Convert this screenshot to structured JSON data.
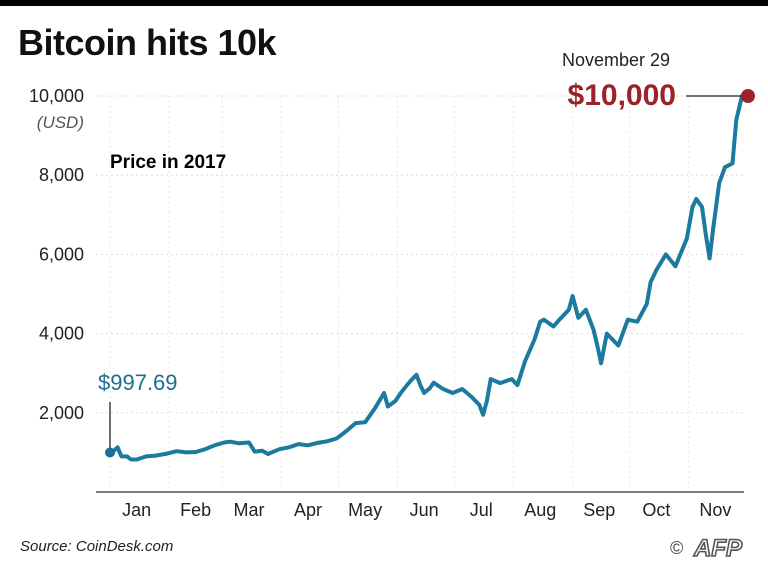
{
  "title": "Bitcoin hits 10k",
  "source": "Source: CoinDesk.com",
  "logo_text": "AFP",
  "copyright_symbol": "©",
  "colors": {
    "line": "#1b7a9e",
    "highlight": "#9b2226",
    "start": "#1b6f8f"
  },
  "chart_data": {
    "type": "line",
    "title": "Bitcoin hits 10k",
    "subtitle": "Price in 2017",
    "ylabel": "(USD)",
    "xlabel": "",
    "ylim": [
      0,
      10000
    ],
    "xlim": [
      "2017-01-01",
      "2017-11-29"
    ],
    "yticks": [
      2000,
      4000,
      6000,
      8000,
      10000
    ],
    "ytick_labels": [
      "2,000",
      "4,000",
      "6,000",
      "8,000",
      "10,000"
    ],
    "xtick_labels": [
      "Jan",
      "Feb",
      "Mar",
      "Apr",
      "May",
      "Jun",
      "Jul",
      "Aug",
      "Sep",
      "Oct",
      "Nov"
    ],
    "grid": true,
    "series": [
      {
        "x": [
          "2017-01-01",
          "2017-01-03",
          "2017-01-05",
          "2017-01-07",
          "2017-01-10",
          "2017-01-12",
          "2017-01-15",
          "2017-01-20",
          "2017-01-25",
          "2017-01-31",
          "2017-02-05",
          "2017-02-10",
          "2017-02-15",
          "2017-02-20",
          "2017-02-25",
          "2017-03-02",
          "2017-03-05",
          "2017-03-10",
          "2017-03-15",
          "2017-03-18",
          "2017-03-22",
          "2017-03-25",
          "2017-03-31",
          "2017-04-05",
          "2017-04-10",
          "2017-04-15",
          "2017-04-20",
          "2017-04-25",
          "2017-04-30",
          "2017-05-05",
          "2017-05-10",
          "2017-05-15",
          "2017-05-20",
          "2017-05-25",
          "2017-05-27",
          "2017-05-31",
          "2017-06-03",
          "2017-06-06",
          "2017-06-08",
          "2017-06-11",
          "2017-06-13",
          "2017-06-15",
          "2017-06-18",
          "2017-06-20",
          "2017-06-25",
          "2017-06-30",
          "2017-07-05",
          "2017-07-10",
          "2017-07-14",
          "2017-07-16",
          "2017-07-18",
          "2017-07-20",
          "2017-07-25",
          "2017-07-31",
          "2017-08-03",
          "2017-08-07",
          "2017-08-12",
          "2017-08-15",
          "2017-08-17",
          "2017-08-22",
          "2017-08-25",
          "2017-08-30",
          "2017-09-01",
          "2017-09-04",
          "2017-09-08",
          "2017-09-12",
          "2017-09-14",
          "2017-09-16",
          "2017-09-19",
          "2017-09-25",
          "2017-09-30",
          "2017-10-05",
          "2017-10-10",
          "2017-10-12",
          "2017-10-15",
          "2017-10-20",
          "2017-10-25",
          "2017-10-31",
          "2017-11-03",
          "2017-11-05",
          "2017-11-08",
          "2017-11-10",
          "2017-11-12",
          "2017-11-14",
          "2017-11-17",
          "2017-11-20",
          "2017-11-24",
          "2017-11-26",
          "2017-11-29"
        ],
        "y": [
          998,
          1040,
          1130,
          900,
          900,
          820,
          820,
          900,
          920,
          970,
          1030,
          1000,
          1010,
          1080,
          1180,
          1250,
          1270,
          1230,
          1250,
          1020,
          1040,
          960,
          1080,
          1130,
          1210,
          1180,
          1240,
          1280,
          1350,
          1530,
          1740,
          1760,
          2100,
          2500,
          2160,
          2300,
          2520,
          2700,
          2810,
          2960,
          2700,
          2500,
          2620,
          2760,
          2600,
          2500,
          2600,
          2400,
          2200,
          1950,
          2300,
          2850,
          2750,
          2850,
          2700,
          3300,
          3850,
          4300,
          4350,
          4180,
          4350,
          4600,
          4950,
          4400,
          4600,
          4100,
          3700,
          3250,
          4000,
          3700,
          4350,
          4300,
          4750,
          5300,
          5600,
          6000,
          5700,
          6400,
          7200,
          7400,
          7200,
          6500,
          5900,
          6700,
          7800,
          8200,
          8300,
          9400,
          10000
        ],
        "start_label": "$997.69",
        "end_date_label": "November 29",
        "end_label": "$10,000"
      }
    ]
  }
}
